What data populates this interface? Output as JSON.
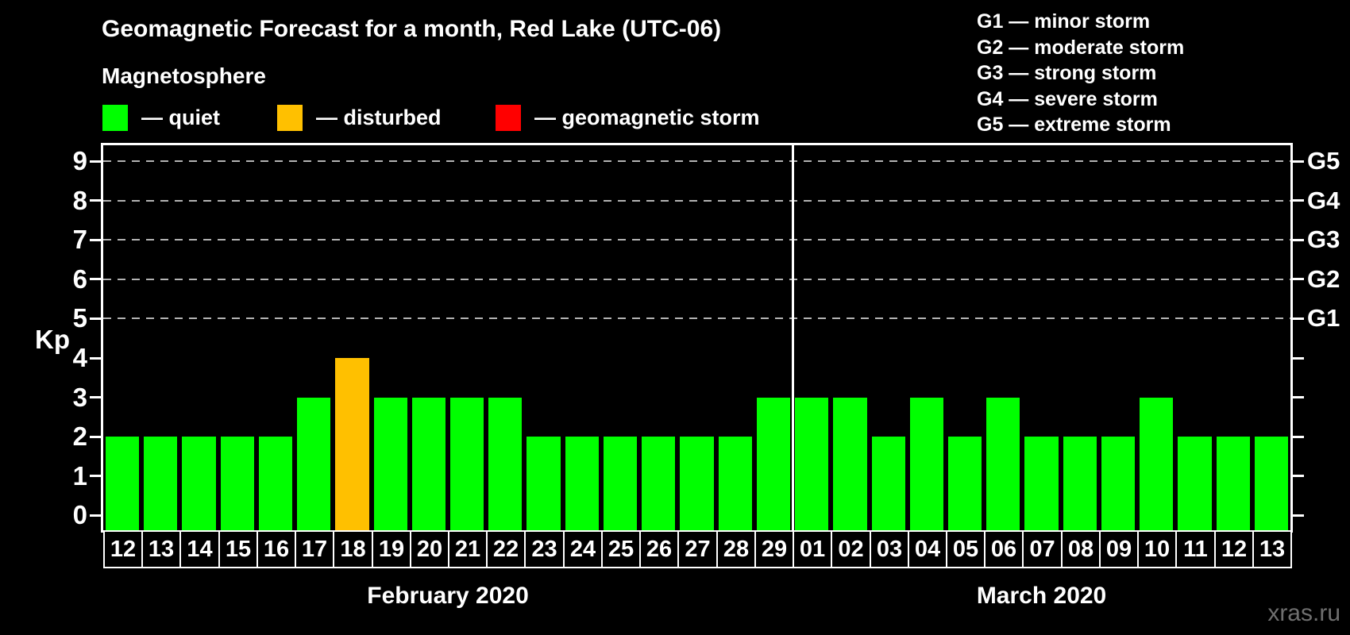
{
  "title": "Geomagnetic Forecast for a month, Red Lake (UTC-06)",
  "subtitle": "Magnetosphere",
  "status_legend": [
    {
      "name": "quiet",
      "label": "— quiet",
      "color": "#00ff00"
    },
    {
      "name": "disturbed",
      "label": "— disturbed",
      "color": "#ffc000"
    },
    {
      "name": "storm",
      "label": "— geomagnetic storm",
      "color": "#ff0000"
    }
  ],
  "g_scale_legend": [
    "G1 — minor storm",
    "G2 — moderate storm",
    "G3 — strong storm",
    "G4 — severe storm",
    "G5 — extreme storm"
  ],
  "watermark": "xras.ru",
  "chart_data": {
    "type": "bar",
    "ylabel": "Kp",
    "ylim": [
      -0.38,
      9.41
    ],
    "y_ticks": [
      0,
      1,
      2,
      3,
      4,
      5,
      6,
      7,
      8,
      9
    ],
    "gridlines_at": [
      5,
      6,
      7,
      8,
      9
    ],
    "grid": "dashed-horizontal",
    "right_axis": [
      {
        "value": 5,
        "label": "G1"
      },
      {
        "value": 6,
        "label": "G2"
      },
      {
        "value": 7,
        "label": "G3"
      },
      {
        "value": 8,
        "label": "G4"
      },
      {
        "value": 9,
        "label": "G5"
      }
    ],
    "status_colors": {
      "quiet": "#00ff00",
      "disturbed": "#ffc000",
      "storm": "#ff0000"
    },
    "months": [
      {
        "label": "February 2020",
        "days": [
          {
            "day": "12",
            "kp": 2,
            "status": "quiet"
          },
          {
            "day": "13",
            "kp": 2,
            "status": "quiet"
          },
          {
            "day": "14",
            "kp": 2,
            "status": "quiet"
          },
          {
            "day": "15",
            "kp": 2,
            "status": "quiet"
          },
          {
            "day": "16",
            "kp": 2,
            "status": "quiet"
          },
          {
            "day": "17",
            "kp": 3,
            "status": "quiet"
          },
          {
            "day": "18",
            "kp": 4,
            "status": "disturbed"
          },
          {
            "day": "19",
            "kp": 3,
            "status": "quiet"
          },
          {
            "day": "20",
            "kp": 3,
            "status": "quiet"
          },
          {
            "day": "21",
            "kp": 3,
            "status": "quiet"
          },
          {
            "day": "22",
            "kp": 3,
            "status": "quiet"
          },
          {
            "day": "23",
            "kp": 2,
            "status": "quiet"
          },
          {
            "day": "24",
            "kp": 2,
            "status": "quiet"
          },
          {
            "day": "25",
            "kp": 2,
            "status": "quiet"
          },
          {
            "day": "26",
            "kp": 2,
            "status": "quiet"
          },
          {
            "day": "27",
            "kp": 2,
            "status": "quiet"
          },
          {
            "day": "28",
            "kp": 2,
            "status": "quiet"
          },
          {
            "day": "29",
            "kp": 3,
            "status": "quiet"
          }
        ]
      },
      {
        "label": "March 2020",
        "days": [
          {
            "day": "01",
            "kp": 3,
            "status": "quiet"
          },
          {
            "day": "02",
            "kp": 3,
            "status": "quiet"
          },
          {
            "day": "03",
            "kp": 2,
            "status": "quiet"
          },
          {
            "day": "04",
            "kp": 3,
            "status": "quiet"
          },
          {
            "day": "05",
            "kp": 2,
            "status": "quiet"
          },
          {
            "day": "06",
            "kp": 3,
            "status": "quiet"
          },
          {
            "day": "07",
            "kp": 2,
            "status": "quiet"
          },
          {
            "day": "08",
            "kp": 2,
            "status": "quiet"
          },
          {
            "day": "09",
            "kp": 2,
            "status": "quiet"
          },
          {
            "day": "10",
            "kp": 3,
            "status": "quiet"
          },
          {
            "day": "11",
            "kp": 2,
            "status": "quiet"
          },
          {
            "day": "12",
            "kp": 2,
            "status": "quiet"
          },
          {
            "day": "13",
            "kp": 2,
            "status": "quiet"
          }
        ]
      }
    ]
  }
}
